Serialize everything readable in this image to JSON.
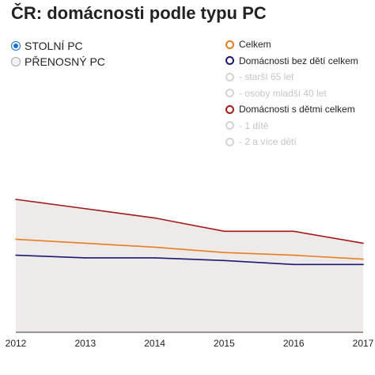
{
  "title": "ČR: domácnosti podle typu PC",
  "radios": [
    {
      "label": "STOLNÍ PC",
      "checked": true
    },
    {
      "label": "PŘENOSNÝ PC",
      "checked": false
    }
  ],
  "legend": [
    {
      "label": "Celkem",
      "color": "#e67e22",
      "active": true
    },
    {
      "label": "Domácnosti bez dětí celkem",
      "color": "#1a1a6e",
      "active": true
    },
    {
      "label": "- starší 65 let",
      "color": "#cccccc",
      "active": false
    },
    {
      "label": "- osoby mladší 40 let",
      "color": "#cccccc",
      "active": false
    },
    {
      "label": "Domácnosti s dětmi celkem",
      "color": "#a31a1a",
      "active": true
    },
    {
      "label": "- 1 dítě",
      "color": "#cccccc",
      "active": false
    },
    {
      "label": "- 2 a více dětí",
      "color": "#cccccc",
      "active": false
    }
  ],
  "chart_data": {
    "type": "line",
    "categories": [
      "2012",
      "2013",
      "2014",
      "2015",
      "2016",
      "2017"
    ],
    "ylim": [
      0,
      100
    ],
    "area_color": "#eeeaea",
    "series": [
      {
        "name": "Domácnosti s dětmi celkem",
        "color": "#a31a1a",
        "values": [
          100,
          93,
          86,
          76,
          76,
          67
        ]
      },
      {
        "name": "Celkem",
        "color": "#e67e22",
        "values": [
          70,
          67,
          64,
          60,
          58,
          55
        ]
      },
      {
        "name": "Domácnosti bez dětí celkem",
        "color": "#1a1a6e",
        "values": [
          58,
          56,
          56,
          54,
          51,
          51
        ]
      }
    ]
  }
}
